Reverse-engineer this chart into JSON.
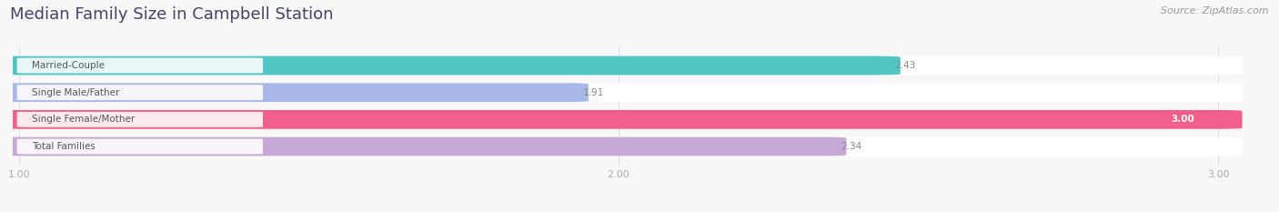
{
  "title": "Median Family Size in Campbell Station",
  "source": "Source: ZipAtlas.com",
  "categories": [
    "Married-Couple",
    "Single Male/Father",
    "Single Female/Mother",
    "Total Families"
  ],
  "values": [
    2.43,
    1.91,
    3.0,
    2.34
  ],
  "bar_colors": [
    "#52c5c5",
    "#aab8e8",
    "#f0608a",
    "#c8a8d8"
  ],
  "track_color": "#eeeeee",
  "xlim_left": 1.0,
  "xlim_right": 3.0,
  "xticks": [
    1.0,
    2.0,
    3.0
  ],
  "xtick_labels": [
    "1.00",
    "2.00",
    "3.00"
  ],
  "background_color": "#f8f8f8",
  "bar_height": 0.62,
  "title_fontsize": 13,
  "label_fontsize": 7.5,
  "value_fontsize": 7.5,
  "tick_fontsize": 8,
  "source_fontsize": 8,
  "label_color": "#555555",
  "value_color": "#888888",
  "tick_color": "#aaaaaa",
  "title_color": "#444466"
}
